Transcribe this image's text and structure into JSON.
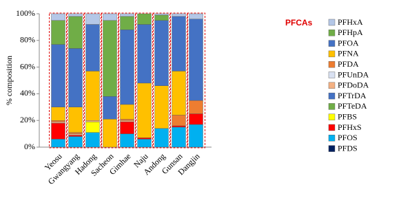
{
  "chart_data": {
    "type": "stacked_bar",
    "y_label": "% composition",
    "annotation": "PFCAs",
    "categories": [
      "Yeosu",
      "Gwangyang",
      "Hadong",
      "Sacheon",
      "Gimhae",
      "Naju",
      "Andong",
      "Gunsan",
      "Dangjin"
    ],
    "ylim": [
      0,
      100
    ],
    "yticks": [
      {
        "value": 0,
        "label": "0%"
      },
      {
        "value": 20,
        "label": "20%"
      },
      {
        "value": 40,
        "label": "40%"
      },
      {
        "value": 60,
        "label": "60%"
      },
      {
        "value": 80,
        "label": "80%"
      },
      {
        "value": 100,
        "label": "100%"
      }
    ],
    "legend_position": "right",
    "series": [
      {
        "name": "PFDS",
        "color": "#002060",
        "values": [
          0,
          0,
          0,
          0,
          0,
          0,
          0,
          0,
          0
        ]
      },
      {
        "name": "PFOS",
        "color": "#00b0f0",
        "values": [
          6,
          8,
          11,
          0,
          10,
          6,
          14,
          15,
          17
        ]
      },
      {
        "name": "PFHxS",
        "color": "#ff0000",
        "values": [
          12,
          1,
          0,
          0,
          9,
          1,
          0,
          1,
          8
        ]
      },
      {
        "name": "PFBS",
        "color": "#ffff00",
        "values": [
          0,
          0,
          8,
          0,
          0,
          0,
          0,
          0,
          0
        ]
      },
      {
        "name": "PFTeDA",
        "color": "#70ad47",
        "values": [
          0,
          0,
          0,
          0,
          0,
          0,
          0,
          0,
          0
        ]
      },
      {
        "name": "PFTrDA",
        "color": "#4472c4",
        "values": [
          0,
          0,
          0,
          0,
          0,
          0,
          0,
          0,
          0
        ]
      },
      {
        "name": "PFDoDA",
        "color": "#f4b183",
        "values": [
          1,
          1,
          1,
          0,
          1,
          0,
          0,
          0,
          0
        ]
      },
      {
        "name": "PFUnDA",
        "color": "#d9e1f2",
        "values": [
          0,
          0,
          0,
          0,
          0,
          0,
          0,
          0,
          0
        ]
      },
      {
        "name": "PFDA",
        "color": "#ed7d31",
        "values": [
          1,
          1,
          0,
          0,
          1,
          0,
          0,
          8,
          10
        ]
      },
      {
        "name": "PFNA",
        "color": "#ffc000",
        "values": [
          10,
          19,
          37,
          21,
          11,
          41,
          32,
          33,
          0
        ]
      },
      {
        "name": "PFOA",
        "color": "#4472c4",
        "values": [
          47,
          44,
          35,
          17,
          56,
          44,
          49,
          41,
          61
        ]
      },
      {
        "name": "PFHpA",
        "color": "#70ad47",
        "values": [
          18,
          24,
          0,
          57,
          10,
          8,
          4,
          0,
          0
        ]
      },
      {
        "name": "PFHxA",
        "color": "#b4c7e7",
        "values": [
          5,
          2,
          8,
          5,
          2,
          0,
          1,
          2,
          4
        ]
      }
    ]
  }
}
